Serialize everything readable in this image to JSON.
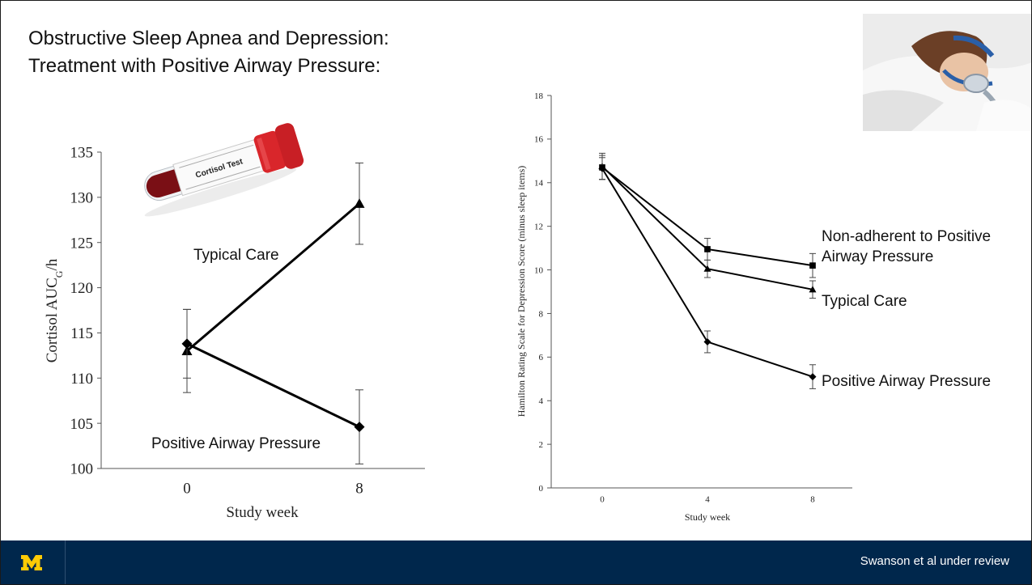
{
  "slide": {
    "title_line1": "Obstructive Sleep Apnea and Depression:",
    "title_line2": "Treatment with Positive Airway Pressure:",
    "citation": "Swanson et al under review"
  },
  "images": {
    "blood_tube_label": "Cortisol Test",
    "tube_cap_color": "#d9262b",
    "blood_color": "#7a0f15"
  },
  "colors": {
    "footer": "#00274c",
    "logo": "#ffcb05"
  },
  "chart_data": [
    {
      "type": "line",
      "title": "",
      "xlabel": "Study week",
      "ylabel": "Cortisol AUC",
      "ylabel_sub": "G",
      "ylabel_suffix": "/h",
      "ylim": [
        100,
        135
      ],
      "yticks": [
        100,
        105,
        110,
        115,
        120,
        125,
        130,
        135
      ],
      "x": [
        0,
        8
      ],
      "xticks": [
        0,
        8
      ],
      "grid": false,
      "series": [
        {
          "name": "Typical Care",
          "marker": "triangle",
          "values": [
            113.0,
            129.3
          ],
          "error": [
            4.6,
            4.5
          ]
        },
        {
          "name": "Positive Airway Pressure",
          "marker": "diamond",
          "values": [
            113.8,
            104.6
          ],
          "error": [
            3.8,
            4.1
          ]
        }
      ]
    },
    {
      "type": "line",
      "title": "",
      "xlabel": "Study week",
      "ylabel": "Hamilton Rating Scale for Depression Score (minus sleep items)",
      "ylim": [
        0,
        18
      ],
      "yticks": [
        0,
        2,
        4,
        6,
        8,
        10,
        12,
        14,
        16,
        18
      ],
      "x": [
        0,
        4,
        8
      ],
      "xticks": [
        0,
        4,
        8
      ],
      "grid": false,
      "series": [
        {
          "name": "Non-adherent to Positive Airway Pressure",
          "label_lines": [
            "Non-adherent to Positive",
            "Airway Pressure"
          ],
          "marker": "square",
          "values": [
            14.7,
            10.95,
            10.2
          ],
          "error": [
            0.55,
            0.5,
            0.55
          ]
        },
        {
          "name": "Typical Care",
          "label_lines": [
            "Typical Care"
          ],
          "marker": "triangle",
          "values": [
            14.75,
            10.05,
            9.1
          ],
          "error": [
            0.6,
            0.4,
            0.4
          ]
        },
        {
          "name": "Positive Airway Pressure",
          "label_lines": [
            "Positive Airway Pressure"
          ],
          "marker": "diamond",
          "values": [
            14.65,
            6.7,
            5.1
          ],
          "error": [
            0.5,
            0.5,
            0.55
          ]
        }
      ]
    }
  ]
}
